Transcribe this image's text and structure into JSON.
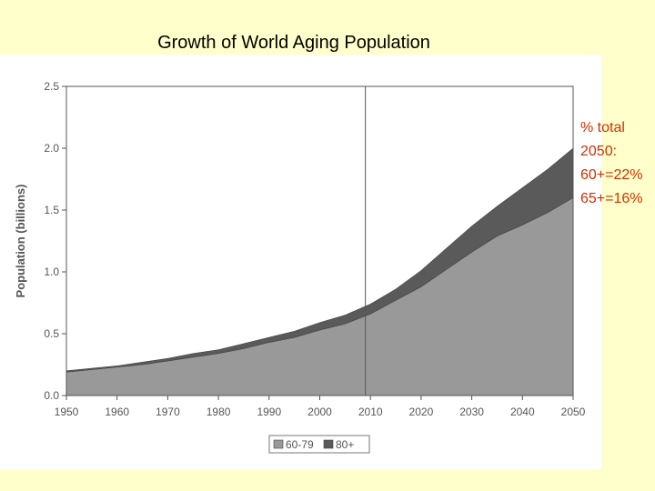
{
  "slide": {
    "title": "Growth of World Aging Population"
  },
  "annotation": {
    "lines": [
      "% total",
      "2050:",
      "60+=22%",
      "65+=16%"
    ],
    "color": "#cc3300"
  },
  "chart_data": {
    "type": "area",
    "stacked": true,
    "title": "",
    "xlabel": "",
    "ylabel": "Population (billions)",
    "xlim": [
      1950,
      2050
    ],
    "ylim": [
      0,
      2.5
    ],
    "x": [
      1950,
      1955,
      1960,
      1965,
      1970,
      1975,
      1980,
      1985,
      1990,
      1995,
      2000,
      2005,
      2010,
      2015,
      2020,
      2025,
      2030,
      2035,
      2040,
      2045,
      2050
    ],
    "x_ticks": [
      "1950",
      "1960",
      "1970",
      "1980",
      "1990",
      "2000",
      "2010",
      "2020",
      "2030",
      "2040",
      "2050"
    ],
    "y_ticks": [
      "0.0",
      "0.5",
      "1.0",
      "1.5",
      "2.0",
      "2.5"
    ],
    "reference_line_x": 2009,
    "series": [
      {
        "name": "60-79",
        "color": "#999999",
        "values": [
          0.19,
          0.21,
          0.23,
          0.25,
          0.28,
          0.31,
          0.34,
          0.38,
          0.43,
          0.47,
          0.53,
          0.58,
          0.66,
          0.77,
          0.88,
          1.02,
          1.16,
          1.29,
          1.38,
          1.48,
          1.6
        ]
      },
      {
        "name": "80+",
        "color": "#5a5a5a",
        "values": [
          0.01,
          0.01,
          0.01,
          0.02,
          0.02,
          0.03,
          0.03,
          0.04,
          0.04,
          0.05,
          0.06,
          0.07,
          0.08,
          0.09,
          0.13,
          0.17,
          0.21,
          0.24,
          0.3,
          0.35,
          0.4
        ]
      }
    ],
    "legend": "bottom-center",
    "grid": false
  }
}
